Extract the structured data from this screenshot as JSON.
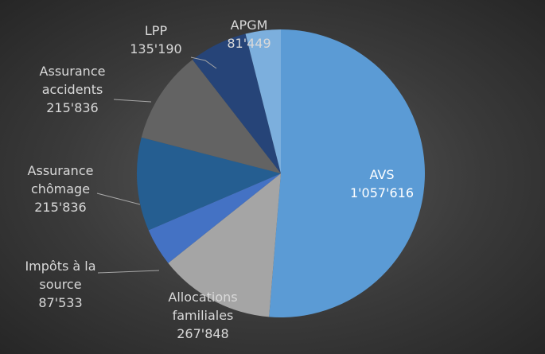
{
  "chart_data": {
    "type": "pie",
    "categories": [
      "AVS",
      "Allocations familiales",
      "Impôts à la source",
      "Assurance chômage",
      "Assurance accidents",
      "LPP",
      "APGM"
    ],
    "values": [
      1057616,
      267848,
      87533,
      215836,
      215836,
      135190,
      81449
    ],
    "value_labels": [
      "1'057'616",
      "267'848",
      "87'533",
      "215'836",
      "215'836",
      "135'190",
      "81'449"
    ],
    "colors": [
      "#5b9bd5",
      "#a5a5a5",
      "#4472c4",
      "#255e91",
      "#636363",
      "#264478",
      "#7cafdd"
    ]
  }
}
